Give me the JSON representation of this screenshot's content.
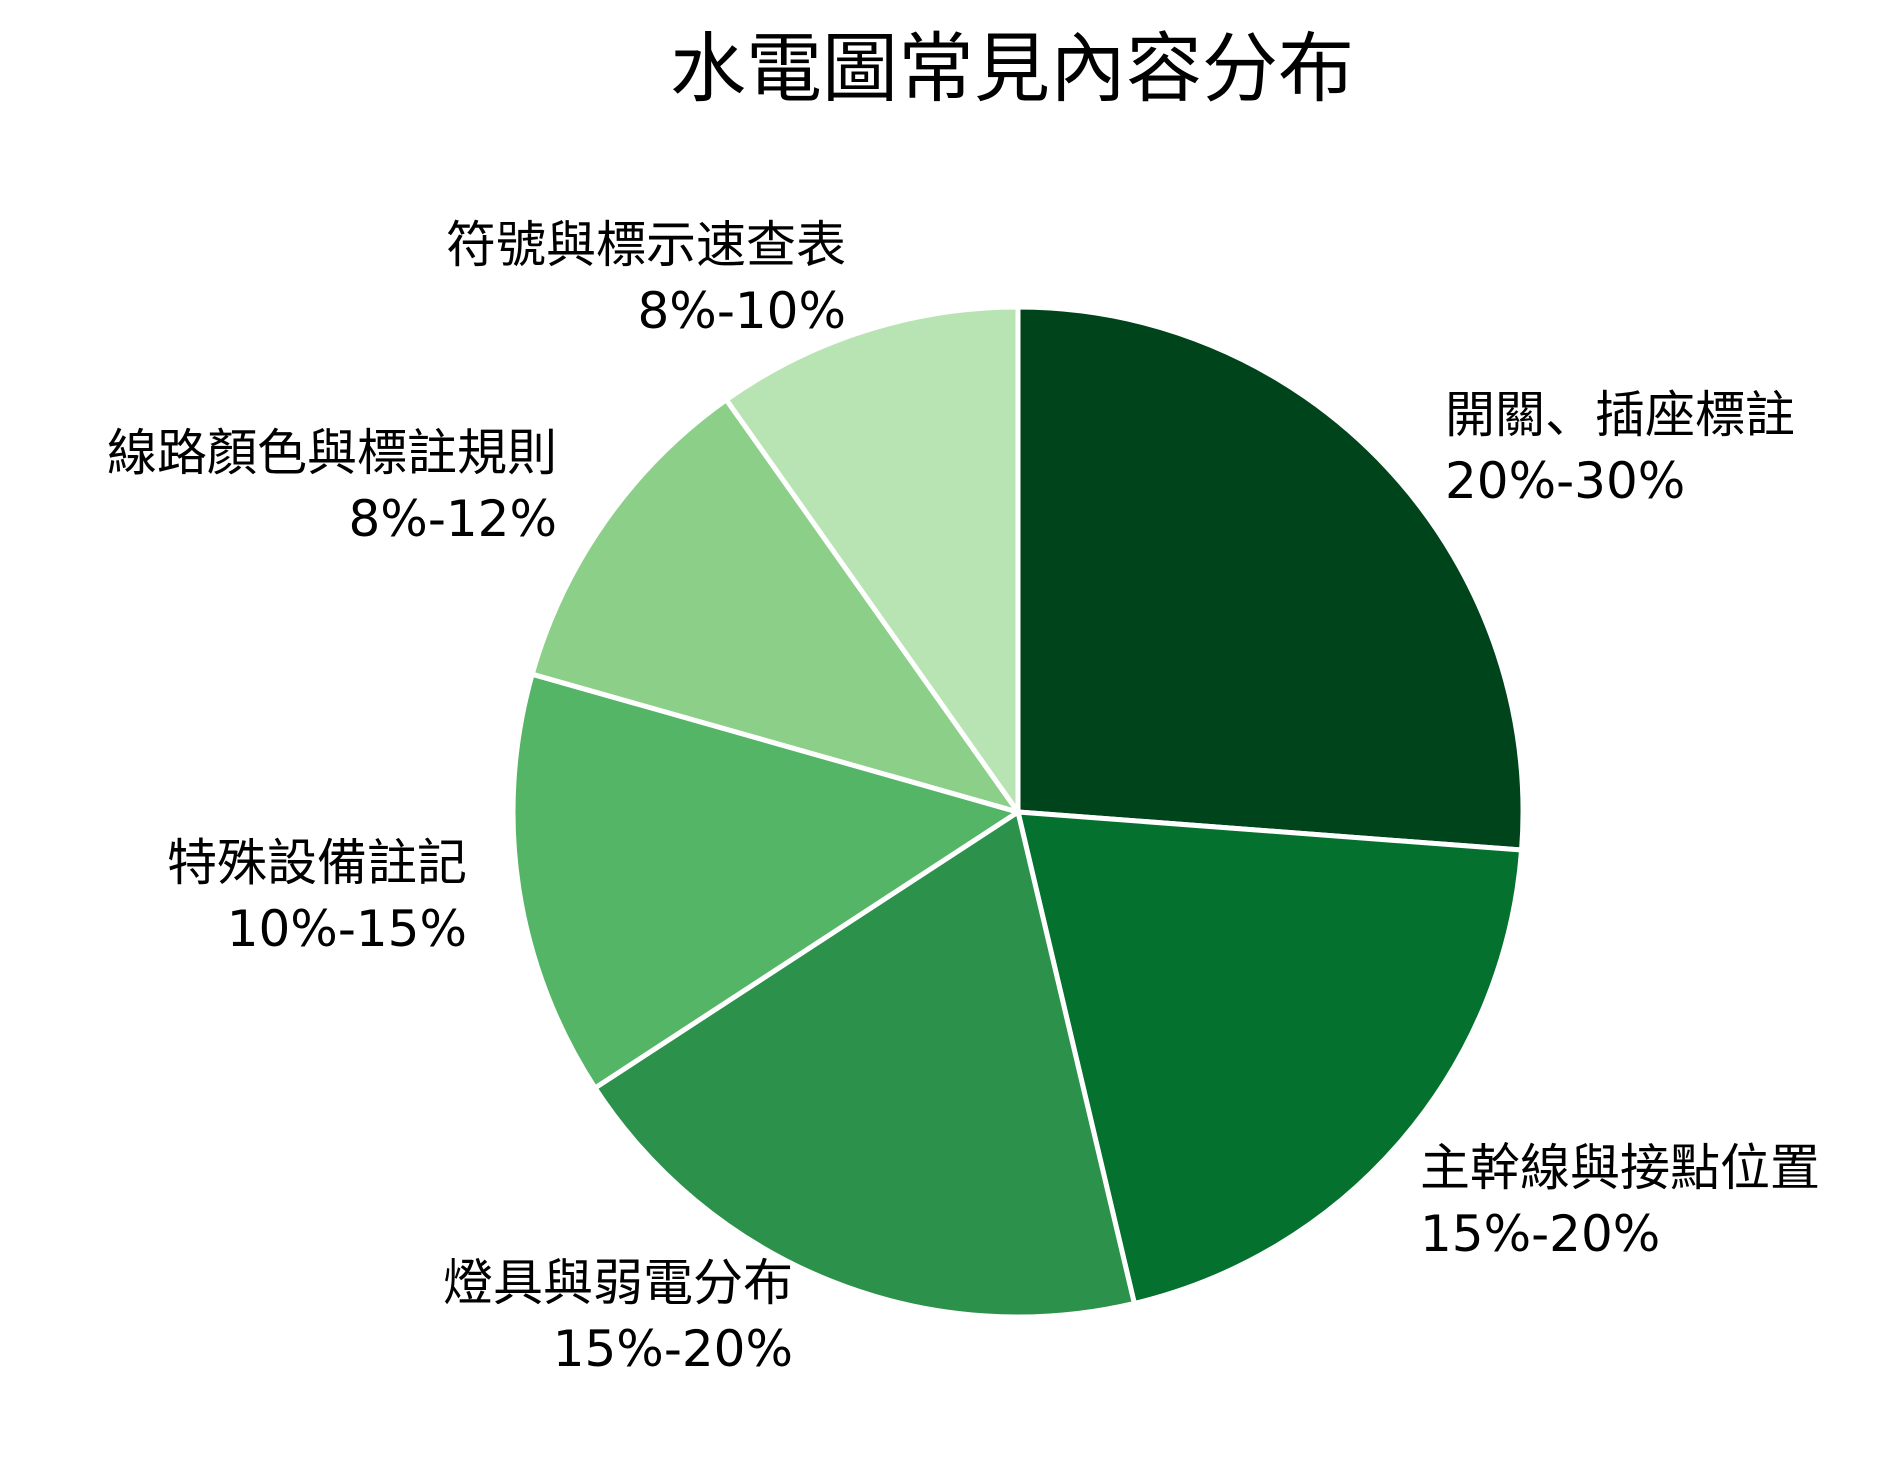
{
  "chart_data": {
    "type": "pie",
    "title": "水電圖常見內容分布",
    "start": "12 o'clock",
    "direction": "clockwise",
    "slices": [
      {
        "name": "開關、插座標註",
        "range": "20%-30%",
        "value": 26.2,
        "color": "#00441b"
      },
      {
        "name": "主幹線與接點位置",
        "range": "15%-20%",
        "value": 20.1,
        "color": "#05712f"
      },
      {
        "name": "燈具與弱電分布",
        "range": "15%-20%",
        "value": 19.5,
        "color": "#2b914b"
      },
      {
        "name": "特殊設備註記",
        "range": "10%-15%",
        "value": 13.6,
        "color": "#55b567"
      },
      {
        "name": "線路顏色與標註規則",
        "range": "8%-12%",
        "value": 10.8,
        "color": "#8ccf88"
      },
      {
        "name": "符號與標示速查表",
        "range": "8%-10%",
        "value": 9.8,
        "color": "#b8e3b2"
      }
    ]
  }
}
